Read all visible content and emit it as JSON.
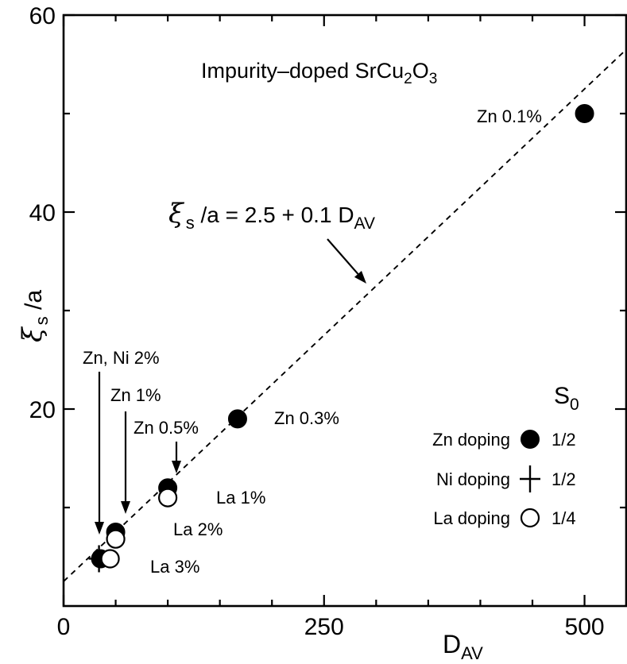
{
  "chart_data": {
    "type": "scatter",
    "title": "Impurity–doped SrCu",
    "title_sub1": "2",
    "title_mid": "O",
    "title_sub2": "3",
    "xlabel_main": "D",
    "xlabel_sub": "AV",
    "ylabel_main": "ξ",
    "ylabel_sub": "s",
    "ylabel_rest": " /a",
    "xlim": [
      0,
      540
    ],
    "ylim": [
      0,
      60
    ],
    "x_ticks_labeled": [
      0,
      250,
      500
    ],
    "y_ticks_labeled": [
      20,
      40,
      60
    ],
    "x_ticks_minor": [
      50,
      100,
      150,
      200,
      300,
      350,
      400,
      450
    ],
    "y_ticks_minor": [
      10,
      30,
      50
    ],
    "origin_label": "0",
    "fit_line": {
      "intercept": 2.5,
      "slope": 0.1,
      "x_range": [
        0,
        540
      ],
      "label_pre": "ξ",
      "label_sub_s": "s",
      "label_mid": " /a = 2.5 + 0.1 D",
      "label_sub_av": "AV"
    },
    "series": [
      {
        "name": "Zn doping",
        "marker": "filled-circle",
        "s0": "1/2",
        "points": [
          {
            "x": 500,
            "y": 50,
            "label": "Zn 0.1%"
          },
          {
            "x": 167,
            "y": 19,
            "label": "Zn 0.3%"
          },
          {
            "x": 100,
            "y": 12,
            "label": "Zn 0.5%"
          },
          {
            "x": 50,
            "y": 7.5,
            "label": "Zn 1%"
          },
          {
            "x": 34,
            "y": 4.8,
            "label": "Zn, Ni 2%"
          }
        ]
      },
      {
        "name": "Ni doping",
        "marker": "plus",
        "s0": "1/2",
        "points": [
          {
            "x": 34,
            "y": 4.8
          }
        ]
      },
      {
        "name": "La doping",
        "marker": "open-circle",
        "s0": "1/4",
        "points": [
          {
            "x": 100,
            "y": 11,
            "label": "La 1%"
          },
          {
            "x": 50,
            "y": 6.8,
            "label": "La 2%"
          },
          {
            "x": 34,
            "y": 4.8,
            "label": "La 3%"
          }
        ]
      }
    ],
    "legend": {
      "header_main": "S",
      "header_sub": "0",
      "placement": "lower-right"
    }
  }
}
